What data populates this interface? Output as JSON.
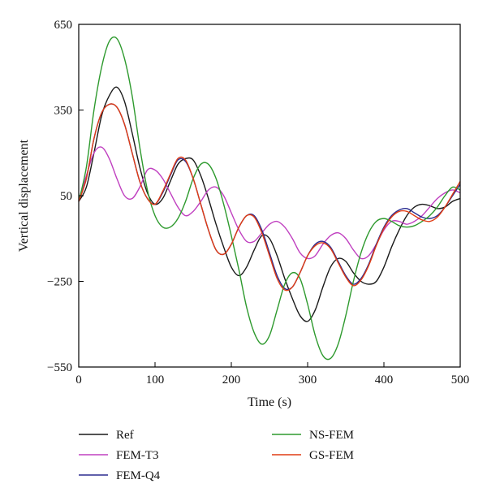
{
  "chart_data": {
    "type": "line",
    "xlabel": "Time (s)",
    "ylabel": "Vertical displacement",
    "xlim": [
      0,
      500
    ],
    "ylim": [
      -550,
      650
    ],
    "xticks": [
      0,
      100,
      200,
      300,
      400,
      500
    ],
    "yticks": [
      -550,
      -250,
      50,
      350,
      650
    ],
    "xtick_labels": [
      "0",
      "100",
      "200",
      "300",
      "400",
      "500"
    ],
    "ytick_labels": [
      "−550",
      "−250",
      "50",
      "350",
      "650"
    ],
    "grid": false,
    "legend_position": "bottom",
    "series": [
      {
        "name": "Ref",
        "color": "#1a1a1a",
        "x": [
          0,
          10,
          20,
          30,
          40,
          50,
          60,
          70,
          80,
          90,
          100,
          110,
          120,
          130,
          140,
          150,
          160,
          170,
          180,
          190,
          200,
          210,
          220,
          230,
          240,
          250,
          260,
          270,
          280,
          290,
          300,
          310,
          320,
          330,
          340,
          350,
          360,
          370,
          380,
          390,
          400,
          410,
          420,
          430,
          440,
          450,
          460,
          470,
          480,
          490,
          500
        ],
        "y": [
          30,
          80,
          200,
          330,
          400,
          430,
          380,
          270,
          150,
          60,
          20,
          40,
          100,
          160,
          180,
          175,
          120,
          40,
          -50,
          -130,
          -200,
          -230,
          -200,
          -140,
          -90,
          -100,
          -160,
          -240,
          -310,
          -370,
          -390,
          -350,
          -270,
          -200,
          -170,
          -180,
          -220,
          -250,
          -260,
          -250,
          -200,
          -130,
          -70,
          -20,
          10,
          20,
          15,
          5,
          10,
          30,
          40
        ]
      },
      {
        "name": "FEM-T3",
        "color": "#c040c0",
        "x": [
          0,
          10,
          20,
          30,
          40,
          50,
          60,
          70,
          80,
          90,
          100,
          110,
          120,
          130,
          140,
          150,
          160,
          170,
          180,
          190,
          200,
          210,
          220,
          230,
          240,
          250,
          260,
          270,
          280,
          290,
          300,
          310,
          320,
          330,
          340,
          350,
          360,
          370,
          380,
          390,
          400,
          410,
          420,
          430,
          440,
          450,
          460,
          470,
          480,
          490,
          500
        ],
        "y": [
          30,
          120,
          200,
          220,
          180,
          110,
          50,
          40,
          80,
          140,
          140,
          110,
          60,
          10,
          -20,
          -5,
          30,
          70,
          80,
          50,
          -10,
          -70,
          -110,
          -110,
          -80,
          -50,
          -40,
          -60,
          -100,
          -150,
          -170,
          -160,
          -120,
          -90,
          -80,
          -100,
          -140,
          -170,
          -160,
          -120,
          -70,
          -40,
          -40,
          -50,
          -40,
          -20,
          10,
          40,
          60,
          70,
          60
        ]
      },
      {
        "name": "FEM-Q4",
        "color": "#2b2b8f",
        "x": [
          0,
          10,
          20,
          30,
          40,
          50,
          60,
          70,
          80,
          90,
          100,
          110,
          120,
          130,
          140,
          150,
          160,
          170,
          180,
          190,
          200,
          210,
          220,
          230,
          240,
          250,
          260,
          270,
          280,
          290,
          300,
          310,
          320,
          330,
          340,
          350,
          360,
          370,
          380,
          390,
          400,
          410,
          420,
          430,
          440,
          450,
          460,
          470,
          480,
          490,
          500
        ],
        "y": [
          30,
          110,
          250,
          340,
          370,
          360,
          300,
          200,
          100,
          40,
          20,
          60,
          120,
          175,
          170,
          110,
          20,
          -70,
          -140,
          -155,
          -120,
          -60,
          -20,
          -20,
          -70,
          -150,
          -230,
          -275,
          -270,
          -220,
          -160,
          -120,
          -110,
          -130,
          -180,
          -230,
          -260,
          -240,
          -190,
          -120,
          -60,
          -20,
          0,
          5,
          -10,
          -25,
          -30,
          -20,
          10,
          50,
          90
        ]
      },
      {
        "name": "NS-FEM",
        "color": "#2e9a2e",
        "x": [
          0,
          10,
          20,
          30,
          40,
          50,
          60,
          70,
          80,
          90,
          100,
          110,
          120,
          130,
          140,
          150,
          160,
          170,
          180,
          190,
          200,
          210,
          220,
          230,
          240,
          250,
          260,
          270,
          280,
          290,
          300,
          310,
          320,
          330,
          340,
          350,
          360,
          370,
          380,
          390,
          400,
          410,
          420,
          430,
          440,
          450,
          460,
          470,
          480,
          490,
          500
        ],
        "y": [
          30,
          150,
          350,
          500,
          590,
          600,
          530,
          400,
          220,
          70,
          -20,
          -60,
          -60,
          -30,
          30,
          110,
          160,
          160,
          110,
          20,
          -90,
          -210,
          -340,
          -430,
          -470,
          -440,
          -350,
          -260,
          -220,
          -240,
          -330,
          -440,
          -510,
          -520,
          -470,
          -370,
          -250,
          -150,
          -80,
          -40,
          -30,
          -40,
          -55,
          -60,
          -55,
          -40,
          -20,
          10,
          50,
          80,
          70
        ]
      },
      {
        "name": "GS-FEM",
        "color": "#e03c14",
        "x": [
          0,
          10,
          20,
          30,
          40,
          50,
          60,
          70,
          80,
          90,
          100,
          110,
          120,
          130,
          140,
          150,
          160,
          170,
          180,
          190,
          200,
          210,
          220,
          230,
          240,
          250,
          260,
          270,
          280,
          290,
          300,
          310,
          320,
          330,
          340,
          350,
          360,
          370,
          380,
          390,
          400,
          410,
          420,
          430,
          440,
          450,
          460,
          470,
          480,
          490,
          500
        ],
        "y": [
          30,
          110,
          250,
          340,
          370,
          360,
          300,
          200,
          100,
          40,
          20,
          65,
          125,
          180,
          175,
          110,
          20,
          -70,
          -140,
          -155,
          -120,
          -60,
          -20,
          -25,
          -80,
          -160,
          -240,
          -280,
          -270,
          -220,
          -160,
          -125,
          -115,
          -135,
          -185,
          -235,
          -265,
          -245,
          -195,
          -125,
          -65,
          -25,
          -5,
          -5,
          -20,
          -35,
          -40,
          -25,
          10,
          55,
          100
        ]
      }
    ]
  }
}
